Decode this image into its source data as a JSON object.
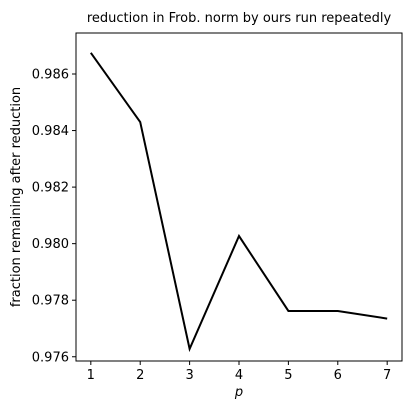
{
  "chart_data": {
    "type": "line",
    "title": "reduction in Frob. norm by ours run repeatedly",
    "xlabel": "p",
    "ylabel": "fraction remaining after reduction",
    "x": [
      1,
      2,
      3,
      4,
      5,
      6,
      7
    ],
    "series": [
      {
        "values": [
          0.98675,
          0.9843,
          0.97628,
          0.98027,
          0.97762,
          0.97762,
          0.97735
        ],
        "color": "#000000"
      }
    ],
    "xlim": [
      0.7,
      7.3
    ],
    "ylim": [
      0.97585,
      0.98745
    ],
    "xticks": [
      1,
      2,
      3,
      4,
      5,
      6,
      7
    ],
    "xtick_labels": [
      "1",
      "2",
      "3",
      "4",
      "5",
      "6",
      "7"
    ],
    "yticks": [
      0.976,
      0.978,
      0.98,
      0.982,
      0.984,
      0.986
    ],
    "ytick_labels": [
      "0.976",
      "0.978",
      "0.980",
      "0.982",
      "0.984",
      "0.986"
    ],
    "grid": false,
    "legend": "none"
  }
}
